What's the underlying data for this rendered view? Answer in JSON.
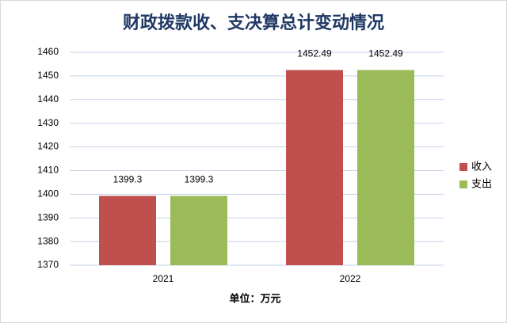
{
  "chart_data": {
    "type": "bar",
    "title": "财政拨款收、支决算总计变动情况",
    "x_label": "单位：万元",
    "categories": [
      "2021",
      "2022"
    ],
    "series": [
      {
        "name": "收入",
        "color": "#c0504d",
        "values": [
          1399.3,
          1452.49
        ]
      },
      {
        "name": "支出",
        "color": "#9bbb59",
        "values": [
          1399.3,
          1452.49
        ]
      }
    ],
    "ylim": [
      1370,
      1460
    ],
    "yticks": [
      1370,
      1380,
      1390,
      1400,
      1410,
      1420,
      1430,
      1440,
      1450,
      1460
    ],
    "grid": true,
    "legend": "right"
  }
}
